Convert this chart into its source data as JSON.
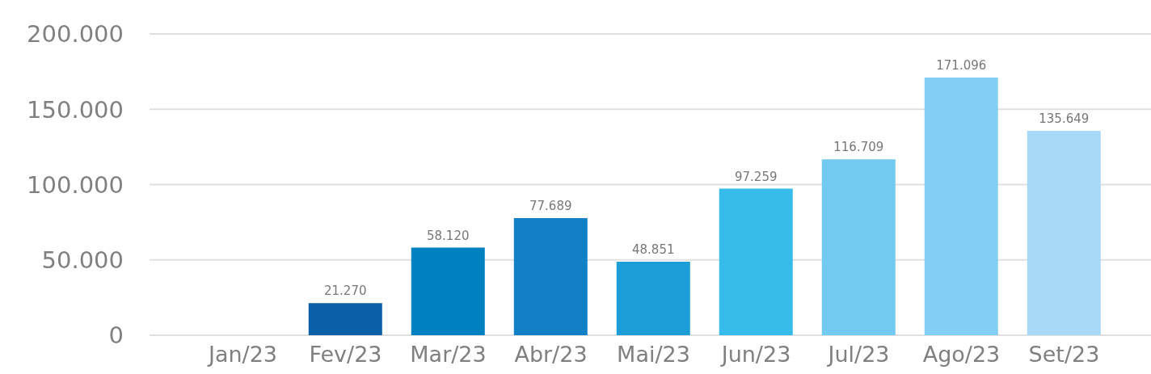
{
  "chart_data": {
    "type": "bar",
    "categories": [
      "Jan/23",
      "Fev/23",
      "Mar/23",
      "Abr/23",
      "Mai/23",
      "Jun/23",
      "Jul/23",
      "Ago/23",
      "Set/23"
    ],
    "values": [
      null,
      21270,
      58120,
      77689,
      48851,
      97259,
      116709,
      171096,
      135649
    ],
    "colors": [
      null,
      "#0a5fa8",
      "#0080c0",
      "#1180c4",
      "#1c9dd8",
      "#36bbea",
      "#72caf3",
      "#83cef3",
      "#a7d8f5"
    ],
    "value_labels": [
      null,
      "21.270",
      "58.120",
      "77.689",
      "48.851",
      "97.259",
      "116.709",
      "171.096",
      "135.649"
    ],
    "ylim": [
      0,
      200000
    ],
    "yticks": [
      {
        "value": 0,
        "label": "0"
      },
      {
        "value": 50000,
        "label": "50.000"
      },
      {
        "value": 100000,
        "label": "100.000"
      },
      {
        "value": 150000,
        "label": "150.000"
      },
      {
        "value": 200000,
        "label": "200.000"
      }
    ],
    "grid": "y"
  }
}
